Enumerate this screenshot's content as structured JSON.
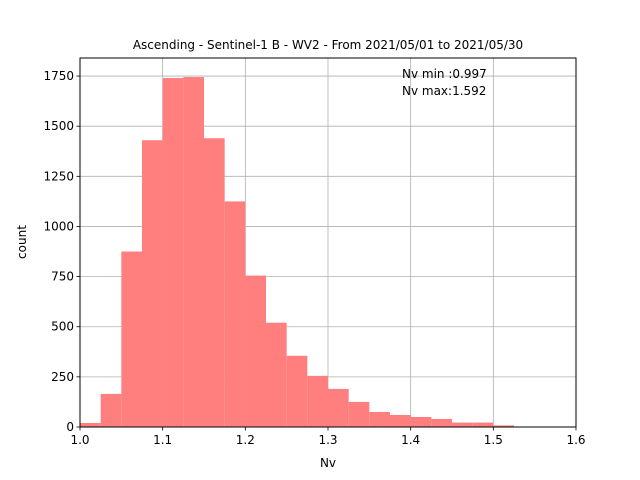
{
  "chart_data": {
    "type": "bar",
    "title": "Ascending - Sentinel-1 B - WV2 - From 2021/05/01 to 2021/05/30",
    "xlabel": "Nv",
    "ylabel": "count",
    "xlim": [
      1.0,
      1.6
    ],
    "ylim": [
      0,
      1840
    ],
    "grid": true,
    "bar_color": "#ff7f7f",
    "x_ticks": [
      "1.0",
      "1.1",
      "1.2",
      "1.3",
      "1.4",
      "1.5",
      "1.6"
    ],
    "y_ticks": [
      "0",
      "250",
      "500",
      "750",
      "1000",
      "1250",
      "1500",
      "1750"
    ],
    "bin_width": 0.025,
    "bin_starts": [
      1.0,
      1.025,
      1.05,
      1.075,
      1.1,
      1.125,
      1.15,
      1.175,
      1.2,
      1.225,
      1.25,
      1.275,
      1.3,
      1.325,
      1.35,
      1.375,
      1.4,
      1.425,
      1.45,
      1.475,
      1.5
    ],
    "values": [
      20,
      165,
      875,
      1430,
      1740,
      1745,
      1440,
      1125,
      755,
      520,
      355,
      255,
      190,
      125,
      75,
      60,
      50,
      40,
      22,
      22,
      8
    ],
    "annotations": [
      "Nv min :0.997",
      "Nv max:1.592"
    ]
  }
}
